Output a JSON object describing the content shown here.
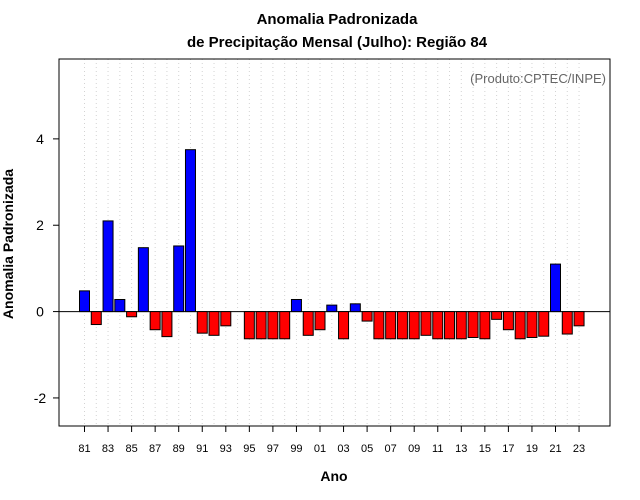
{
  "chart_data": {
    "type": "bar",
    "title": "Anomalia Padronizada",
    "subtitle": "de Precipitação Mensal (Julho): Região 84",
    "xlabel": "Ano",
    "ylabel": "Anomalia Padronizada",
    "annotation": "(Produto:CPTEC/INPE)",
    "ylim": [
      -2.65,
      5.85
    ],
    "yticks": [
      -2,
      0,
      2,
      4
    ],
    "grid": "vertical dotted lines at each year",
    "legend": "none",
    "colors": {
      "positive": "#0000ff",
      "negative": "#ff0000",
      "grid": "#d3d3d3",
      "zero_line": "#000000"
    },
    "xtick_labels": [
      "81",
      "83",
      "85",
      "87",
      "89",
      "91",
      "93",
      "95",
      "97",
      "99",
      "01",
      "03",
      "05",
      "07",
      "09",
      "11",
      "13",
      "15",
      "17",
      "19",
      "21",
      "23"
    ],
    "categories": [
      "81",
      "82",
      "83",
      "84",
      "85",
      "86",
      "87",
      "88",
      "89",
      "90",
      "91",
      "92",
      "93",
      "94",
      "95",
      "96",
      "97",
      "98",
      "99",
      "00",
      "01",
      "02",
      "03",
      "04",
      "05",
      "06",
      "07",
      "08",
      "09",
      "10",
      "11",
      "12",
      "13",
      "14",
      "15",
      "16",
      "17",
      "18",
      "19",
      "20",
      "21",
      "22",
      "23"
    ],
    "values": [
      0.48,
      -0.3,
      2.1,
      0.28,
      -0.12,
      1.48,
      -0.42,
      -0.58,
      1.52,
      3.75,
      -0.5,
      -0.55,
      -0.33,
      0,
      -0.63,
      -0.63,
      -0.63,
      -0.63,
      0.28,
      -0.55,
      -0.42,
      0.15,
      -0.63,
      0.18,
      -0.22,
      -0.63,
      -0.63,
      -0.63,
      -0.63,
      -0.55,
      -0.63,
      -0.63,
      -0.63,
      -0.6,
      -0.63,
      -0.18,
      -0.42,
      -0.63,
      -0.6,
      -0.57,
      1.1,
      -0.52,
      -0.33
    ]
  }
}
